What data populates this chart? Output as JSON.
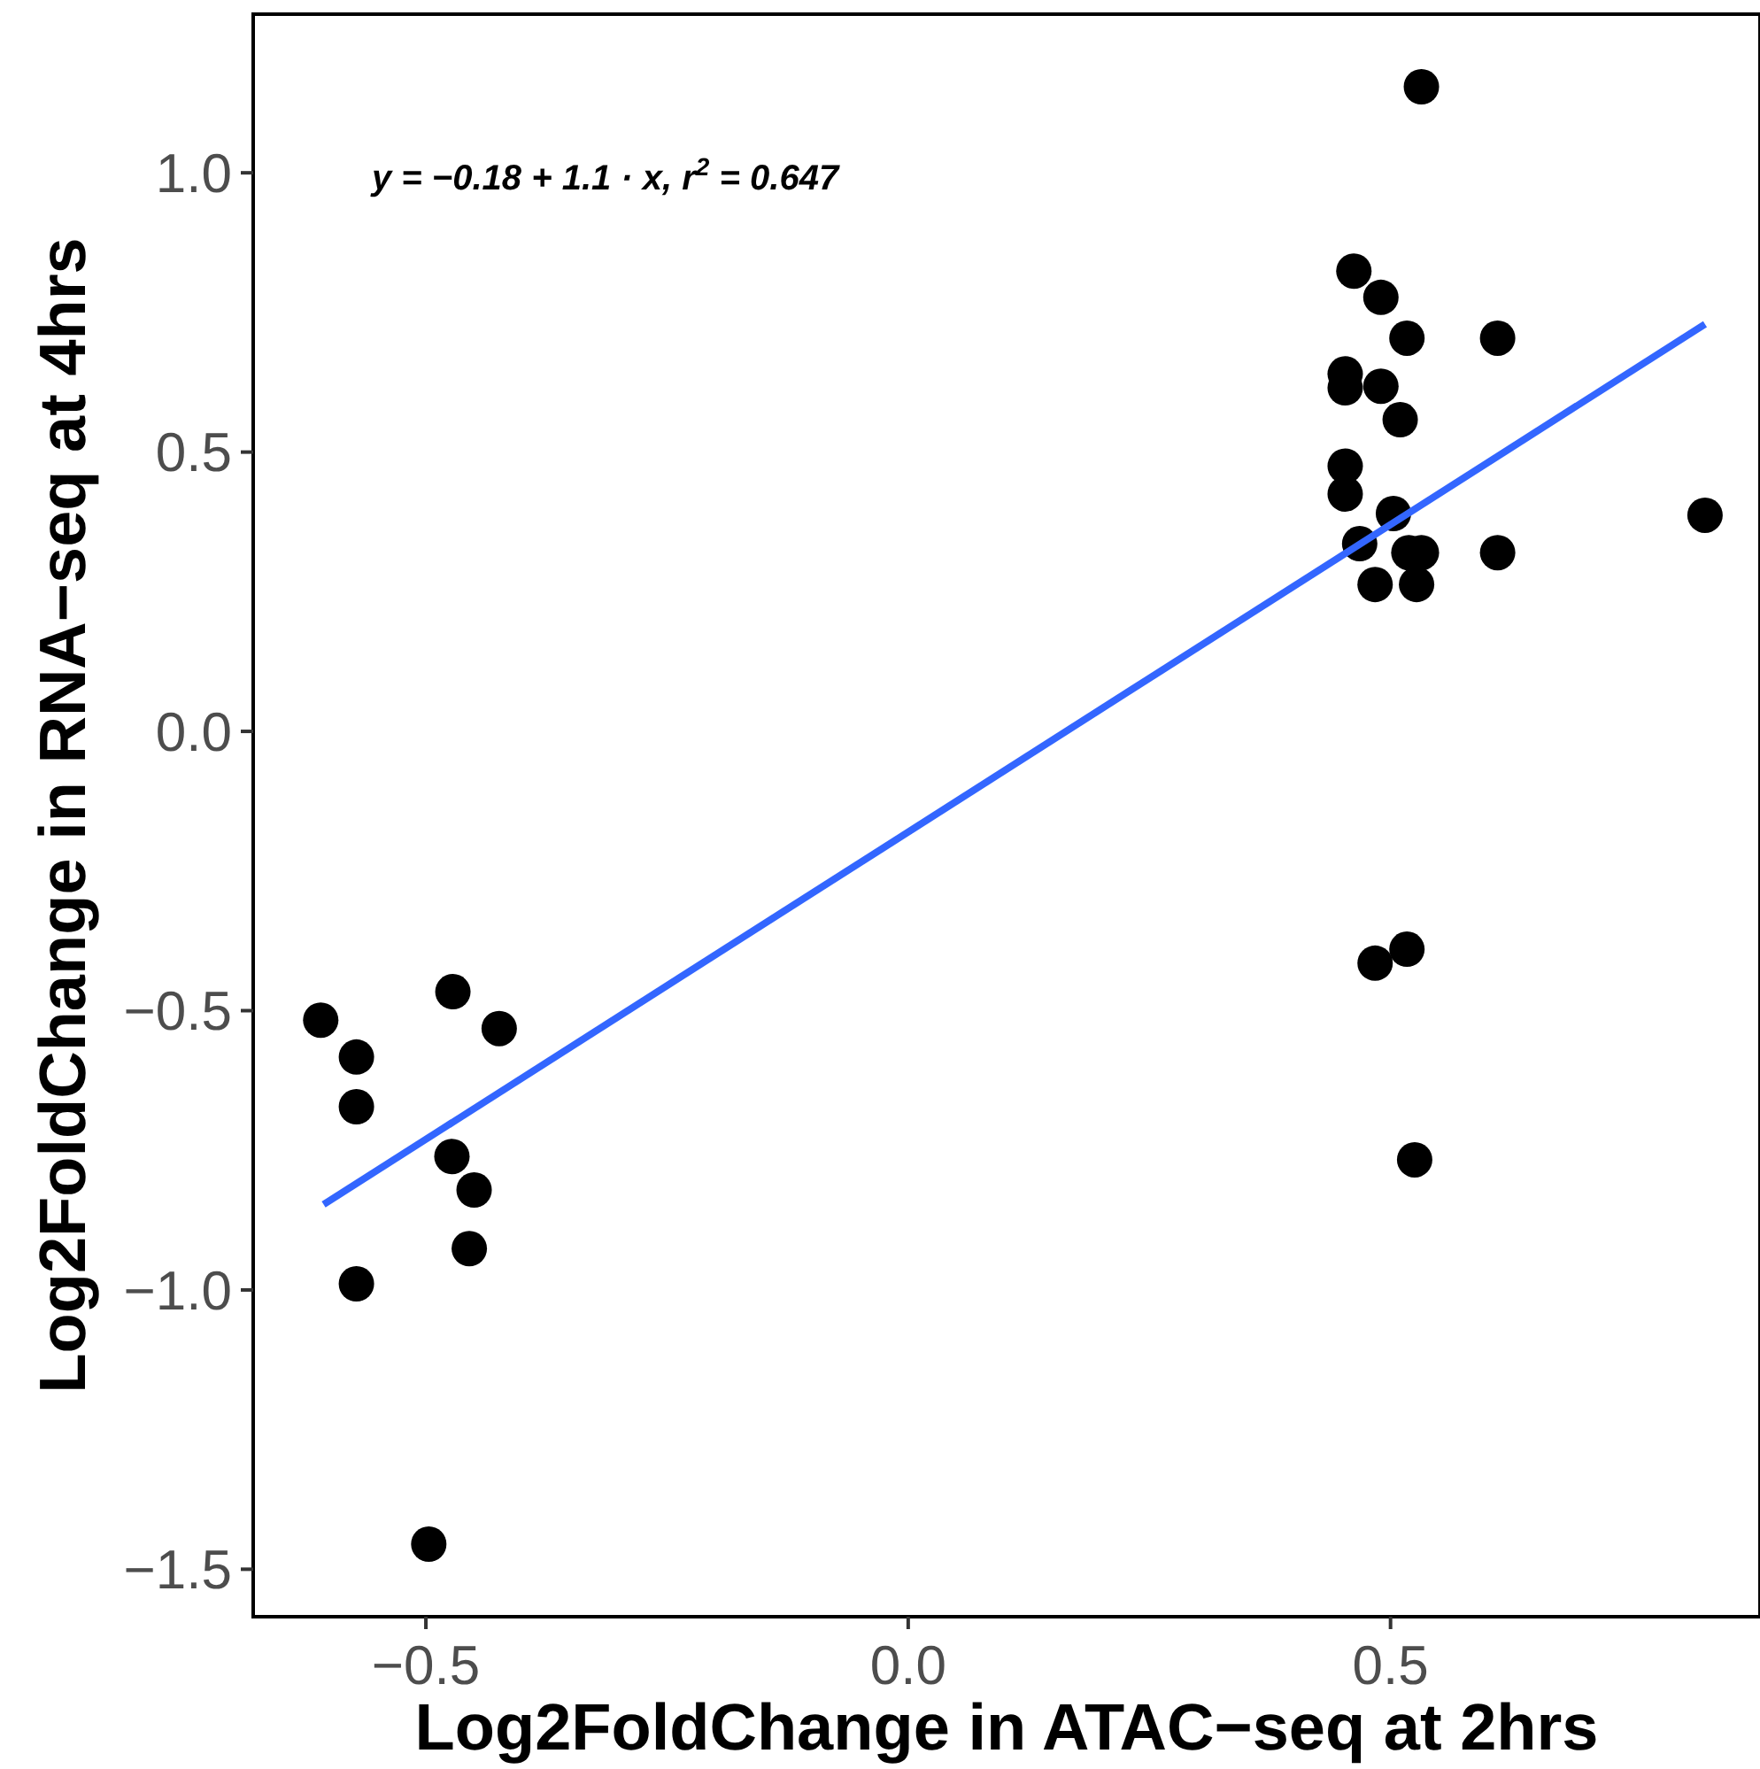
{
  "chart_data": {
    "type": "scatter",
    "xlabel": "Log2FoldChange in ATAC−seq at 2hrs",
    "ylabel": "Log2FoldChange in RNA−seq at 4hrs",
    "annotations": [
      "y = −0.18 + 1.1 · x,  r$^{2}$ = 0.647"
    ],
    "xlim": [
      -0.679,
      0.883
    ],
    "ylim": [
      -1.585,
      1.284
    ],
    "xticks": [
      {
        "value": -0.5,
        "label": "−0.5"
      },
      {
        "value": 0,
        "label": "0.0"
      },
      {
        "value": 0.5,
        "label": "0.5"
      }
    ],
    "yticks": [
      {
        "value": -1.5,
        "label": "−1.5"
      },
      {
        "value": -1,
        "label": "−1.0"
      },
      {
        "value": -0.5,
        "label": "−0.5"
      },
      {
        "value": 0,
        "label": "0.0"
      },
      {
        "value": 0.5,
        "label": "0.5"
      },
      {
        "value": 1,
        "label": "1.0"
      }
    ],
    "grid": false,
    "marker": "circle",
    "series": [
      {
        "color": "#000000",
        "x": [
          -0.609,
          -0.572,
          -0.572,
          -0.572,
          -0.472,
          -0.424,
          -0.473,
          -0.45,
          -0.455,
          -0.497,
          0.532,
          0.462,
          0.49,
          0.453,
          0.453,
          0.49,
          0.517,
          0.611,
          0.51,
          0.453,
          0.453,
          0.503,
          0.468,
          0.519,
          0.532,
          0.611,
          0.484,
          0.527,
          0.826,
          0.484,
          0.517,
          0.525
        ],
        "values": [
          -0.517,
          -0.583,
          -0.672,
          -0.989,
          -0.466,
          -0.532,
          -0.761,
          -0.821,
          -0.926,
          -1.455,
          1.154,
          0.824,
          0.777,
          0.64,
          0.615,
          0.618,
          0.704,
          0.704,
          0.558,
          0.475,
          0.425,
          0.39,
          0.336,
          0.32,
          0.32,
          0.32,
          0.263,
          0.263,
          0.387,
          -0.415,
          -0.39,
          -0.767
        ]
      },
      {
        "type": "line",
        "marker": "none",
        "color": "#3366ff",
        "x": [
          -0.606,
          0.826
        ],
        "values": [
          -0.847,
          0.729
        ]
      }
    ]
  }
}
